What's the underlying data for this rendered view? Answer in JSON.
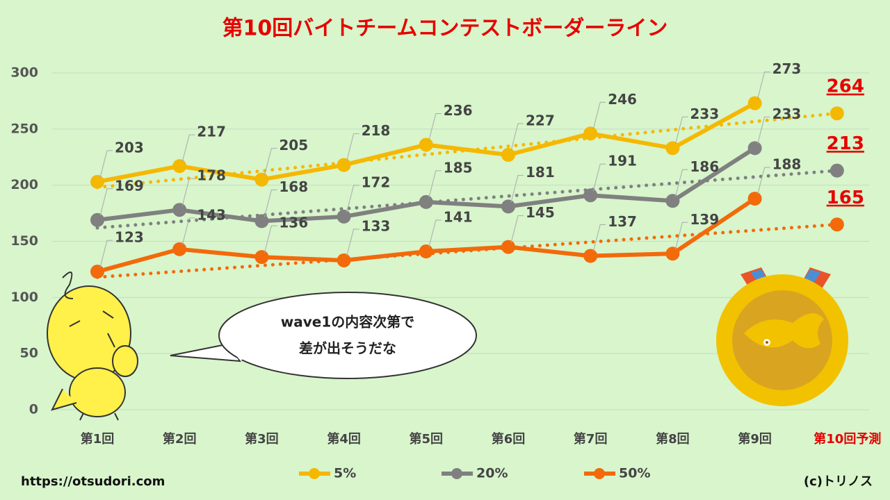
{
  "chart_data": {
    "type": "line",
    "title": "第10回バイトチームコンテストボーダーライン",
    "categories": [
      "第1回",
      "第2回",
      "第3回",
      "第4回",
      "第5回",
      "第6回",
      "第7回",
      "第8回",
      "第9回",
      "第10回予測"
    ],
    "series": [
      {
        "name": "5%",
        "color": "#f5b800",
        "values": [
          203,
          217,
          205,
          218,
          236,
          227,
          246,
          233,
          273,
          null
        ],
        "trend_start": 198,
        "forecast": 264
      },
      {
        "name": "20%",
        "color": "#808080",
        "values": [
          169,
          178,
          168,
          172,
          185,
          181,
          191,
          186,
          233,
          null
        ],
        "trend_start": 162,
        "forecast": 213
      },
      {
        "name": "50%",
        "color": "#f26a0a",
        "values": [
          123,
          143,
          136,
          133,
          141,
          145,
          137,
          139,
          188,
          null
        ],
        "trend_start": 118,
        "forecast": 165
      }
    ],
    "ylim": [
      0,
      300
    ],
    "yticks": [
      0,
      50,
      100,
      150,
      200,
      250,
      300
    ],
    "grid": true,
    "forecast_color": "#e60000"
  },
  "bubble": {
    "lines": [
      "wave1の内容次第で",
      "差が出そうだな"
    ]
  },
  "footer": {
    "url": "https://otsudori.com",
    "credit": "(c)トリノス"
  }
}
